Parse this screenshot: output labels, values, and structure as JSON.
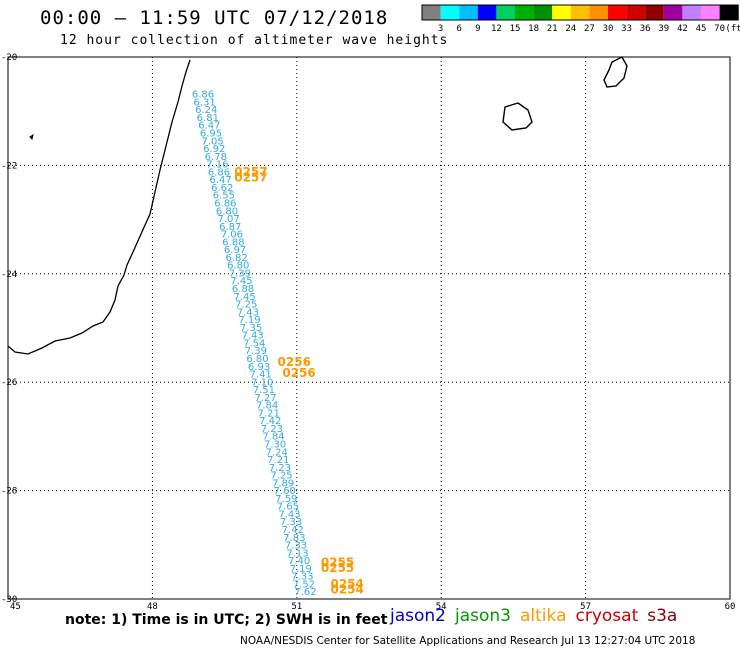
{
  "header": {
    "title": "00:00 – 11:59 UTC 07/12/2018",
    "subtitle": "12 hour collection of altimeter wave heights"
  },
  "colorbar": {
    "unit_label": "(ft)",
    "colors": [
      "#808080",
      "#00ffff",
      "#00bfff",
      "#0000ff",
      "#00d060",
      "#00b000",
      "#009000",
      "#ffff00",
      "#ffc000",
      "#ff9000",
      "#ff0000",
      "#d00000",
      "#900000",
      "#a000a0",
      "#c080ff",
      "#ff80ff",
      "#000000"
    ],
    "ticks": [
      "3",
      "6",
      "9",
      "12",
      "15",
      "18",
      "21",
      "24",
      "27",
      "30",
      "33",
      "36",
      "39",
      "42",
      "45",
      "70"
    ]
  },
  "map": {
    "lon_ticks": [
      "45",
      "48",
      "51",
      "54",
      "57",
      "60"
    ],
    "lat_ticks": [
      "-20",
      "-22",
      "-24",
      "-26",
      "-28",
      "-30"
    ],
    "lon_range": [
      45,
      60
    ],
    "lat_range": [
      -20,
      -30
    ],
    "track_color": "#33aadd",
    "time_color": "#ff9900",
    "wave_heights_ft": [
      "6.86",
      "6.31",
      "6.24",
      "6.81",
      "6.47",
      "6.95",
      "7.05",
      "6.92",
      "6.78",
      "7.16",
      "6.86",
      "6.47",
      "6.62",
      "6.55",
      "6.86",
      "6.80",
      "7.07",
      "6.87",
      "7.06",
      "6.88",
      "6.97",
      "6.82",
      "6.80",
      "7.39",
      "7.45",
      "6.88",
      "7.45",
      "7.25",
      "7.43",
      "7.19",
      "7.35",
      "7.43",
      "7.54",
      "7.39",
      "6.80",
      "6.93",
      "7.41",
      "7.10",
      "7.51",
      "7.27",
      "7.84",
      "7.21",
      "7.42",
      "7.23",
      "7.84",
      "7.30",
      "7.24",
      "7.21",
      "7.23",
      "7.25",
      "7.89",
      "7.60",
      "7.59",
      "7.65",
      "7.43",
      "7.33",
      "7.42",
      "7.83",
      "7.33",
      "7.13",
      "7.40",
      "7.19",
      "7.33",
      "7.52",
      "7.62"
    ],
    "time_labels": [
      {
        "text": "0257",
        "lon": 49.7,
        "lat": -22.2
      },
      {
        "text": "0257",
        "lon": 49.7,
        "lat": -22.3
      },
      {
        "text": "0256",
        "lon": 50.6,
        "lat": -25.7
      },
      {
        "text": "0256",
        "lon": 50.7,
        "lat": -25.9
      },
      {
        "text": "0255",
        "lon": 51.5,
        "lat": -29.4
      },
      {
        "text": "0255",
        "lon": 51.5,
        "lat": -29.5
      },
      {
        "text": "0254",
        "lon": 51.7,
        "lat": -29.8
      },
      {
        "text": "0254",
        "lon": 51.7,
        "lat": -29.9
      }
    ]
  },
  "footer": {
    "note": "note: 1) Time is in UTC; 2) SWH is in feet",
    "satellites": [
      {
        "name": "jason2",
        "color": "#0000cc"
      },
      {
        "name": "jason3",
        "color": "#009900"
      },
      {
        "name": "altika",
        "color": "#ff9900"
      },
      {
        "name": "cryosat",
        "color": "#cc0000"
      },
      {
        "name": "s3a",
        "color": "#880000"
      }
    ],
    "credit": "NOAA/NESDIS Center for Satellite Applications and Research    Jul 13 12:27:04 UTC 2018"
  }
}
